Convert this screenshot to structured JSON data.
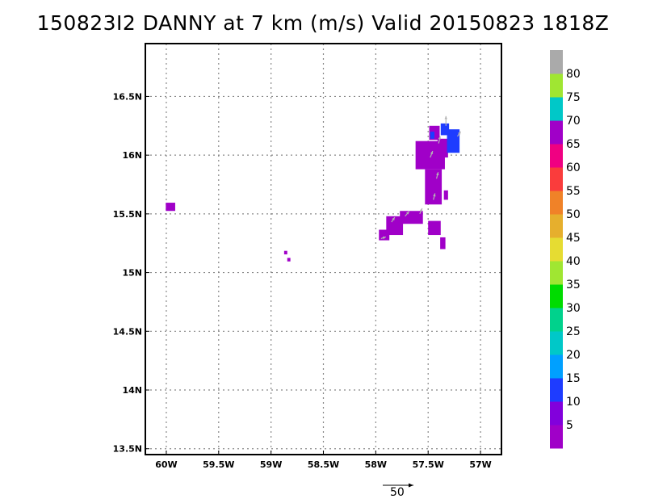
{
  "title": "150823I2 DANNY at 7 km (m/s) Valid 20150823 1818Z",
  "chart_data": {
    "type": "heatmap",
    "title": "150823I2 DANNY at 7 km (m/s) Valid 20150823 1818Z",
    "xlim": [
      -60.2,
      -56.8
    ],
    "ylim": [
      13.45,
      16.95
    ],
    "x_ticks": [
      {
        "value": -60.0,
        "label": "60W"
      },
      {
        "value": -59.5,
        "label": "59.5W"
      },
      {
        "value": -59.0,
        "label": "59W"
      },
      {
        "value": -58.5,
        "label": "58.5W"
      },
      {
        "value": -58.0,
        "label": "58W"
      },
      {
        "value": -57.5,
        "label": "57.5W"
      },
      {
        "value": -57.0,
        "label": "57W"
      }
    ],
    "y_ticks": [
      {
        "value": 13.5,
        "label": "13.5N"
      },
      {
        "value": 14.0,
        "label": "14N"
      },
      {
        "value": 14.5,
        "label": "14.5N"
      },
      {
        "value": 15.0,
        "label": "15N"
      },
      {
        "value": 15.5,
        "label": "15.5N"
      },
      {
        "value": 16.0,
        "label": "16N"
      },
      {
        "value": 16.5,
        "label": "16.5N"
      }
    ],
    "grid": true,
    "colorbar": {
      "labels": [
        "5",
        "10",
        "15",
        "20",
        "25",
        "30",
        "35",
        "40",
        "45",
        "50",
        "55",
        "60",
        "65",
        "70",
        "75",
        "80"
      ],
      "colors": [
        "#a000c8",
        "#8200dc",
        "#1e3cff",
        "#00a0ff",
        "#00c8c8",
        "#00d28c",
        "#00dc00",
        "#a0e632",
        "#e6dc32",
        "#e6af2d",
        "#f08228",
        "#fa3c3c",
        "#f00082",
        "#a000c8",
        "#00c8c8",
        "#a0e632",
        "#aaaaaa"
      ]
    },
    "reference_vector": {
      "label": "50",
      "value": 50
    },
    "cells": [
      {
        "lon": -59.96,
        "lat": 15.56,
        "dlon": 0.09,
        "dlat": 0.07,
        "value": 4
      },
      {
        "lon": -58.86,
        "lat": 15.17,
        "dlon": 0.03,
        "dlat": 0.03,
        "value": 4
      },
      {
        "lon": -58.83,
        "lat": 15.11,
        "dlon": 0.03,
        "dlat": 0.03,
        "value": 4
      },
      {
        "lon": -57.92,
        "lat": 15.32,
        "dlon": 0.1,
        "dlat": 0.09,
        "value": 4
      },
      {
        "lon": -57.82,
        "lat": 15.4,
        "dlon": 0.16,
        "dlat": 0.16,
        "value": 4
      },
      {
        "lon": -57.66,
        "lat": 15.47,
        "dlon": 0.22,
        "dlat": 0.11,
        "value": 4
      },
      {
        "lon": -57.45,
        "lat": 15.73,
        "dlon": 0.16,
        "dlat": 0.3,
        "value": 4
      },
      {
        "lon": -57.44,
        "lat": 15.38,
        "dlon": 0.12,
        "dlat": 0.12,
        "value": 4
      },
      {
        "lon": -57.36,
        "lat": 15.25,
        "dlon": 0.05,
        "dlat": 0.1,
        "value": 4
      },
      {
        "lon": -57.33,
        "lat": 15.66,
        "dlon": 0.04,
        "dlat": 0.08,
        "value": 4
      },
      {
        "lon": -57.48,
        "lat": 16.0,
        "dlon": 0.28,
        "dlat": 0.24,
        "value": 4
      },
      {
        "lon": -57.44,
        "lat": 16.19,
        "dlon": 0.1,
        "dlat": 0.12,
        "value": 4
      },
      {
        "lon": -57.36,
        "lat": 16.06,
        "dlon": 0.1,
        "dlat": 0.16,
        "value": 4
      },
      {
        "lon": -57.34,
        "lat": 16.22,
        "dlon": 0.08,
        "dlat": 0.1,
        "value": 12
      },
      {
        "lon": -57.26,
        "lat": 16.12,
        "dlon": 0.12,
        "dlat": 0.2,
        "value": 12
      },
      {
        "lon": -57.46,
        "lat": 16.17,
        "dlon": 0.04,
        "dlat": 0.06,
        "value": 12
      }
    ],
    "vectors": [
      {
        "lon": -57.95,
        "lat": 15.29,
        "u": 6,
        "v": 2
      },
      {
        "lon": -57.85,
        "lat": 15.43,
        "u": 4,
        "v": 6
      },
      {
        "lon": -57.72,
        "lat": 15.48,
        "u": 5,
        "v": 6
      },
      {
        "lon": -57.58,
        "lat": 15.5,
        "u": 3,
        "v": 7
      },
      {
        "lon": -57.45,
        "lat": 15.62,
        "u": 2,
        "v": 8
      },
      {
        "lon": -57.42,
        "lat": 15.8,
        "u": 2,
        "v": 8
      },
      {
        "lon": -57.48,
        "lat": 15.98,
        "u": 3,
        "v": 8
      },
      {
        "lon": -57.4,
        "lat": 16.1,
        "u": 2,
        "v": 9
      },
      {
        "lon": -57.33,
        "lat": 16.25,
        "u": 0,
        "v": 12
      },
      {
        "lon": -57.22,
        "lat": 16.16,
        "u": 4,
        "v": 6
      }
    ]
  }
}
